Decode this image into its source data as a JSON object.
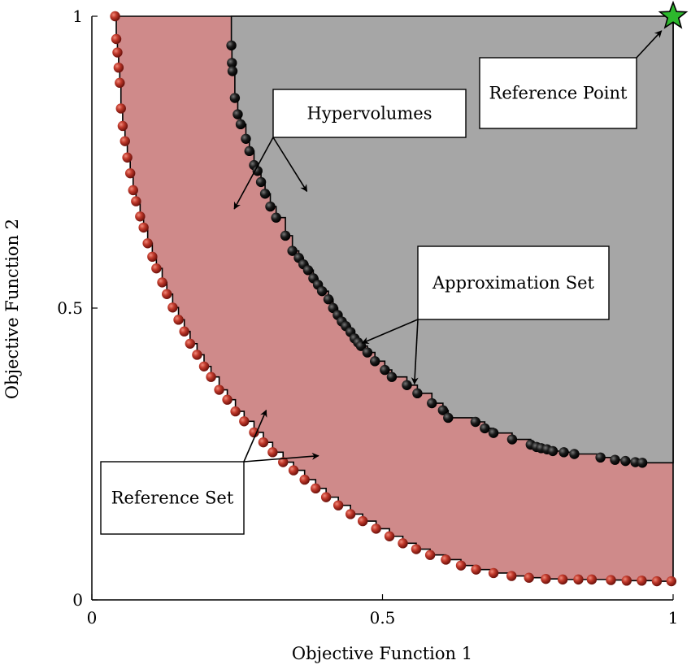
{
  "chart_data": {
    "type": "scatter",
    "title": "",
    "xlabel": "Objective Function 1",
    "ylabel": "Objective Function 2",
    "xlim": [
      0,
      1
    ],
    "ylim": [
      0,
      1
    ],
    "xticks": [
      "0",
      "0.5",
      "1"
    ],
    "yticks": [
      "0",
      "0.5",
      "1"
    ],
    "grid": false,
    "reference_point": {
      "x": 1.0,
      "y": 1.0,
      "marker": "star",
      "color": "#2db82d"
    },
    "fill_colors": {
      "reference_hypervolume": "#cf8a8a",
      "approximation_hypervolume": "#a6a6a6"
    },
    "series": [
      {
        "name": "Reference Set",
        "color": "#b22a22",
        "points": [
          [
            0.04,
            1.0
          ],
          [
            0.042,
            0.961
          ],
          [
            0.044,
            0.938
          ],
          [
            0.046,
            0.912
          ],
          [
            0.048,
            0.886
          ],
          [
            0.05,
            0.842
          ],
          [
            0.053,
            0.812
          ],
          [
            0.057,
            0.786
          ],
          [
            0.061,
            0.758
          ],
          [
            0.066,
            0.731
          ],
          [
            0.071,
            0.702
          ],
          [
            0.076,
            0.683
          ],
          [
            0.083,
            0.657
          ],
          [
            0.089,
            0.638
          ],
          [
            0.096,
            0.611
          ],
          [
            0.104,
            0.588
          ],
          [
            0.111,
            0.568
          ],
          [
            0.121,
            0.544
          ],
          [
            0.129,
            0.524
          ],
          [
            0.139,
            0.501
          ],
          [
            0.149,
            0.48
          ],
          [
            0.159,
            0.46
          ],
          [
            0.169,
            0.439
          ],
          [
            0.181,
            0.42
          ],
          [
            0.193,
            0.4
          ],
          [
            0.205,
            0.382
          ],
          [
            0.219,
            0.36
          ],
          [
            0.233,
            0.343
          ],
          [
            0.247,
            0.323
          ],
          [
            0.262,
            0.306
          ],
          [
            0.279,
            0.287
          ],
          [
            0.295,
            0.27
          ],
          [
            0.311,
            0.253
          ],
          [
            0.329,
            0.236
          ],
          [
            0.347,
            0.222
          ],
          [
            0.366,
            0.206
          ],
          [
            0.385,
            0.191
          ],
          [
            0.403,
            0.176
          ],
          [
            0.424,
            0.162
          ],
          [
            0.445,
            0.147
          ],
          [
            0.466,
            0.135
          ],
          [
            0.489,
            0.122
          ],
          [
            0.512,
            0.109
          ],
          [
            0.535,
            0.097
          ],
          [
            0.558,
            0.087
          ],
          [
            0.582,
            0.077
          ],
          [
            0.609,
            0.069
          ],
          [
            0.635,
            0.059
          ],
          [
            0.661,
            0.052
          ],
          [
            0.691,
            0.046
          ],
          [
            0.722,
            0.041
          ],
          [
            0.752,
            0.038
          ],
          [
            0.781,
            0.036
          ],
          [
            0.81,
            0.035
          ],
          [
            0.837,
            0.035
          ],
          [
            0.86,
            0.035
          ],
          [
            0.893,
            0.034
          ],
          [
            0.92,
            0.033
          ],
          [
            0.946,
            0.033
          ],
          [
            0.972,
            0.032
          ],
          [
            0.997,
            0.032
          ]
        ]
      },
      {
        "name": "Approximation Set",
        "color": "#111111",
        "points": [
          [
            0.24,
            0.95
          ],
          [
            0.241,
            0.92
          ],
          [
            0.242,
            0.906
          ],
          [
            0.246,
            0.86
          ],
          [
            0.251,
            0.832
          ],
          [
            0.256,
            0.815
          ],
          [
            0.265,
            0.79
          ],
          [
            0.271,
            0.769
          ],
          [
            0.279,
            0.745
          ],
          [
            0.285,
            0.735
          ],
          [
            0.291,
            0.716
          ],
          [
            0.298,
            0.696
          ],
          [
            0.307,
            0.674
          ],
          [
            0.317,
            0.655
          ],
          [
            0.333,
            0.624
          ],
          [
            0.345,
            0.598
          ],
          [
            0.356,
            0.586
          ],
          [
            0.364,
            0.575
          ],
          [
            0.372,
            0.565
          ],
          [
            0.381,
            0.551
          ],
          [
            0.389,
            0.54
          ],
          [
            0.396,
            0.529
          ],
          [
            0.407,
            0.515
          ],
          [
            0.415,
            0.5
          ],
          [
            0.423,
            0.488
          ],
          [
            0.43,
            0.477
          ],
          [
            0.437,
            0.469
          ],
          [
            0.445,
            0.459
          ],
          [
            0.452,
            0.448
          ],
          [
            0.458,
            0.441
          ],
          [
            0.463,
            0.435
          ],
          [
            0.474,
            0.424
          ],
          [
            0.487,
            0.409
          ],
          [
            0.504,
            0.394
          ],
          [
            0.516,
            0.382
          ],
          [
            0.542,
            0.368
          ],
          [
            0.56,
            0.354
          ],
          [
            0.585,
            0.337
          ],
          [
            0.604,
            0.325
          ],
          [
            0.613,
            0.312
          ],
          [
            0.66,
            0.305
          ],
          [
            0.676,
            0.294
          ],
          [
            0.691,
            0.286
          ],
          [
            0.723,
            0.275
          ],
          [
            0.755,
            0.266
          ],
          [
            0.765,
            0.262
          ],
          [
            0.773,
            0.26
          ],
          [
            0.783,
            0.258
          ],
          [
            0.793,
            0.255
          ],
          [
            0.812,
            0.253
          ],
          [
            0.83,
            0.25
          ],
          [
            0.875,
            0.244
          ],
          [
            0.9,
            0.24
          ],
          [
            0.918,
            0.238
          ],
          [
            0.935,
            0.236
          ],
          [
            0.947,
            0.235
          ]
        ]
      }
    ],
    "annotations": [
      {
        "text": "Reference Point",
        "arrow_to": [
          [
            0.98,
            0.975
          ]
        ]
      },
      {
        "text": "Hypervolumes",
        "arrow_to": [
          [
            0.245,
            0.67
          ],
          [
            0.37,
            0.7
          ]
        ]
      },
      {
        "text": "Approximation Set",
        "arrow_to": [
          [
            0.465,
            0.44
          ],
          [
            0.555,
            0.37
          ]
        ]
      },
      {
        "text": "Reference Set",
        "arrow_to": [
          [
            0.3,
            0.325
          ],
          [
            0.39,
            0.247
          ]
        ]
      }
    ]
  }
}
